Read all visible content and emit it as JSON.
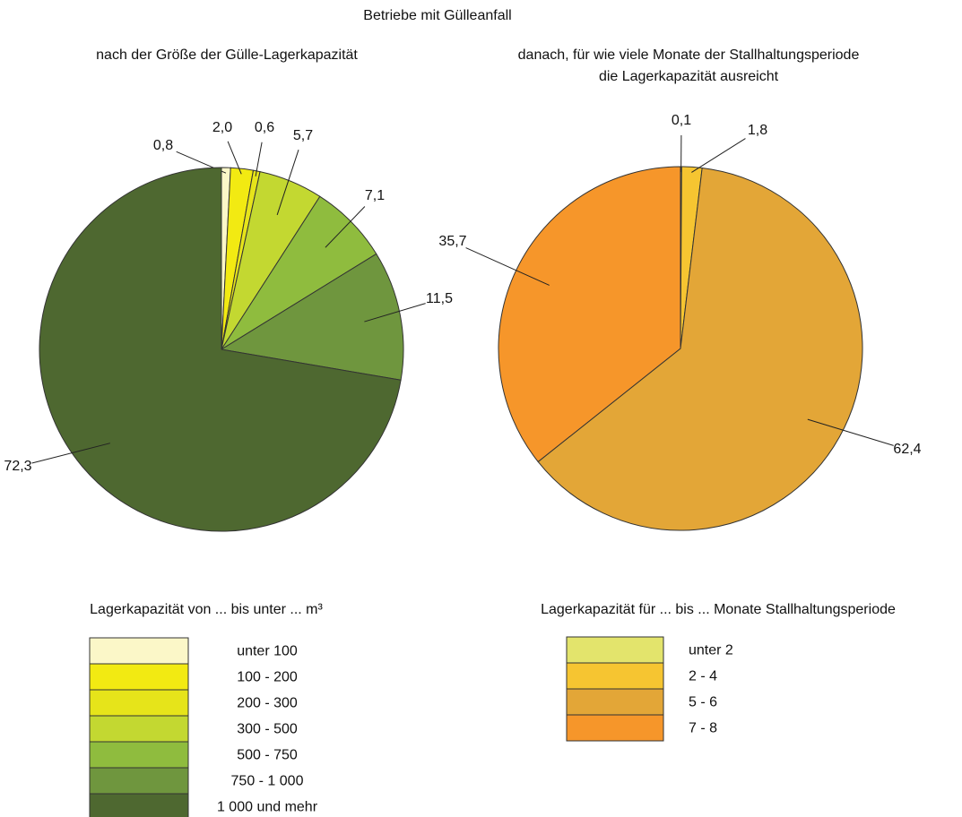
{
  "title": "Betriebe mit Gülleanfall",
  "chart_data": [
    {
      "type": "pie",
      "title": [
        "nach der Größe der Gülle-Lagerkapazität"
      ],
      "legend_title": "Lagerkapazität von ... bis unter ... m³",
      "categories": [
        "unter 100",
        "100 - 200",
        "200 - 300",
        "300 - 500",
        "500 - 750",
        "750 - 1 000",
        "1 000 und mehr"
      ],
      "values": [
        0.8,
        2.0,
        0.6,
        5.7,
        7.1,
        11.5,
        72.3
      ],
      "value_labels": [
        "0,8",
        "2,0",
        "0,6",
        "5,7",
        "7,1",
        "11,5",
        "72,3"
      ],
      "colors": [
        "#fbf7c8",
        "#f2ea12",
        "#e6e41a",
        "#c3d831",
        "#8fbc3e",
        "#6f963e",
        "#4e6830"
      ]
    },
    {
      "type": "pie",
      "title": [
        "danach, für wie viele Monate der Stallhaltungsperiode",
        "die Lagerkapazität ausreicht"
      ],
      "legend_title": "Lagerkapazität für ... bis ... Monate Stallhaltungsperiode",
      "categories": [
        "unter 2",
        "2 - 4",
        "5 - 6",
        "7 - 8"
      ],
      "values": [
        0.1,
        1.8,
        62.4,
        35.7
      ],
      "value_labels": [
        "0,1",
        "1,8",
        "62,4",
        "35,7"
      ],
      "colors": [
        "#e3e46c",
        "#f6c531",
        "#e3a637",
        "#f6962a"
      ]
    }
  ]
}
